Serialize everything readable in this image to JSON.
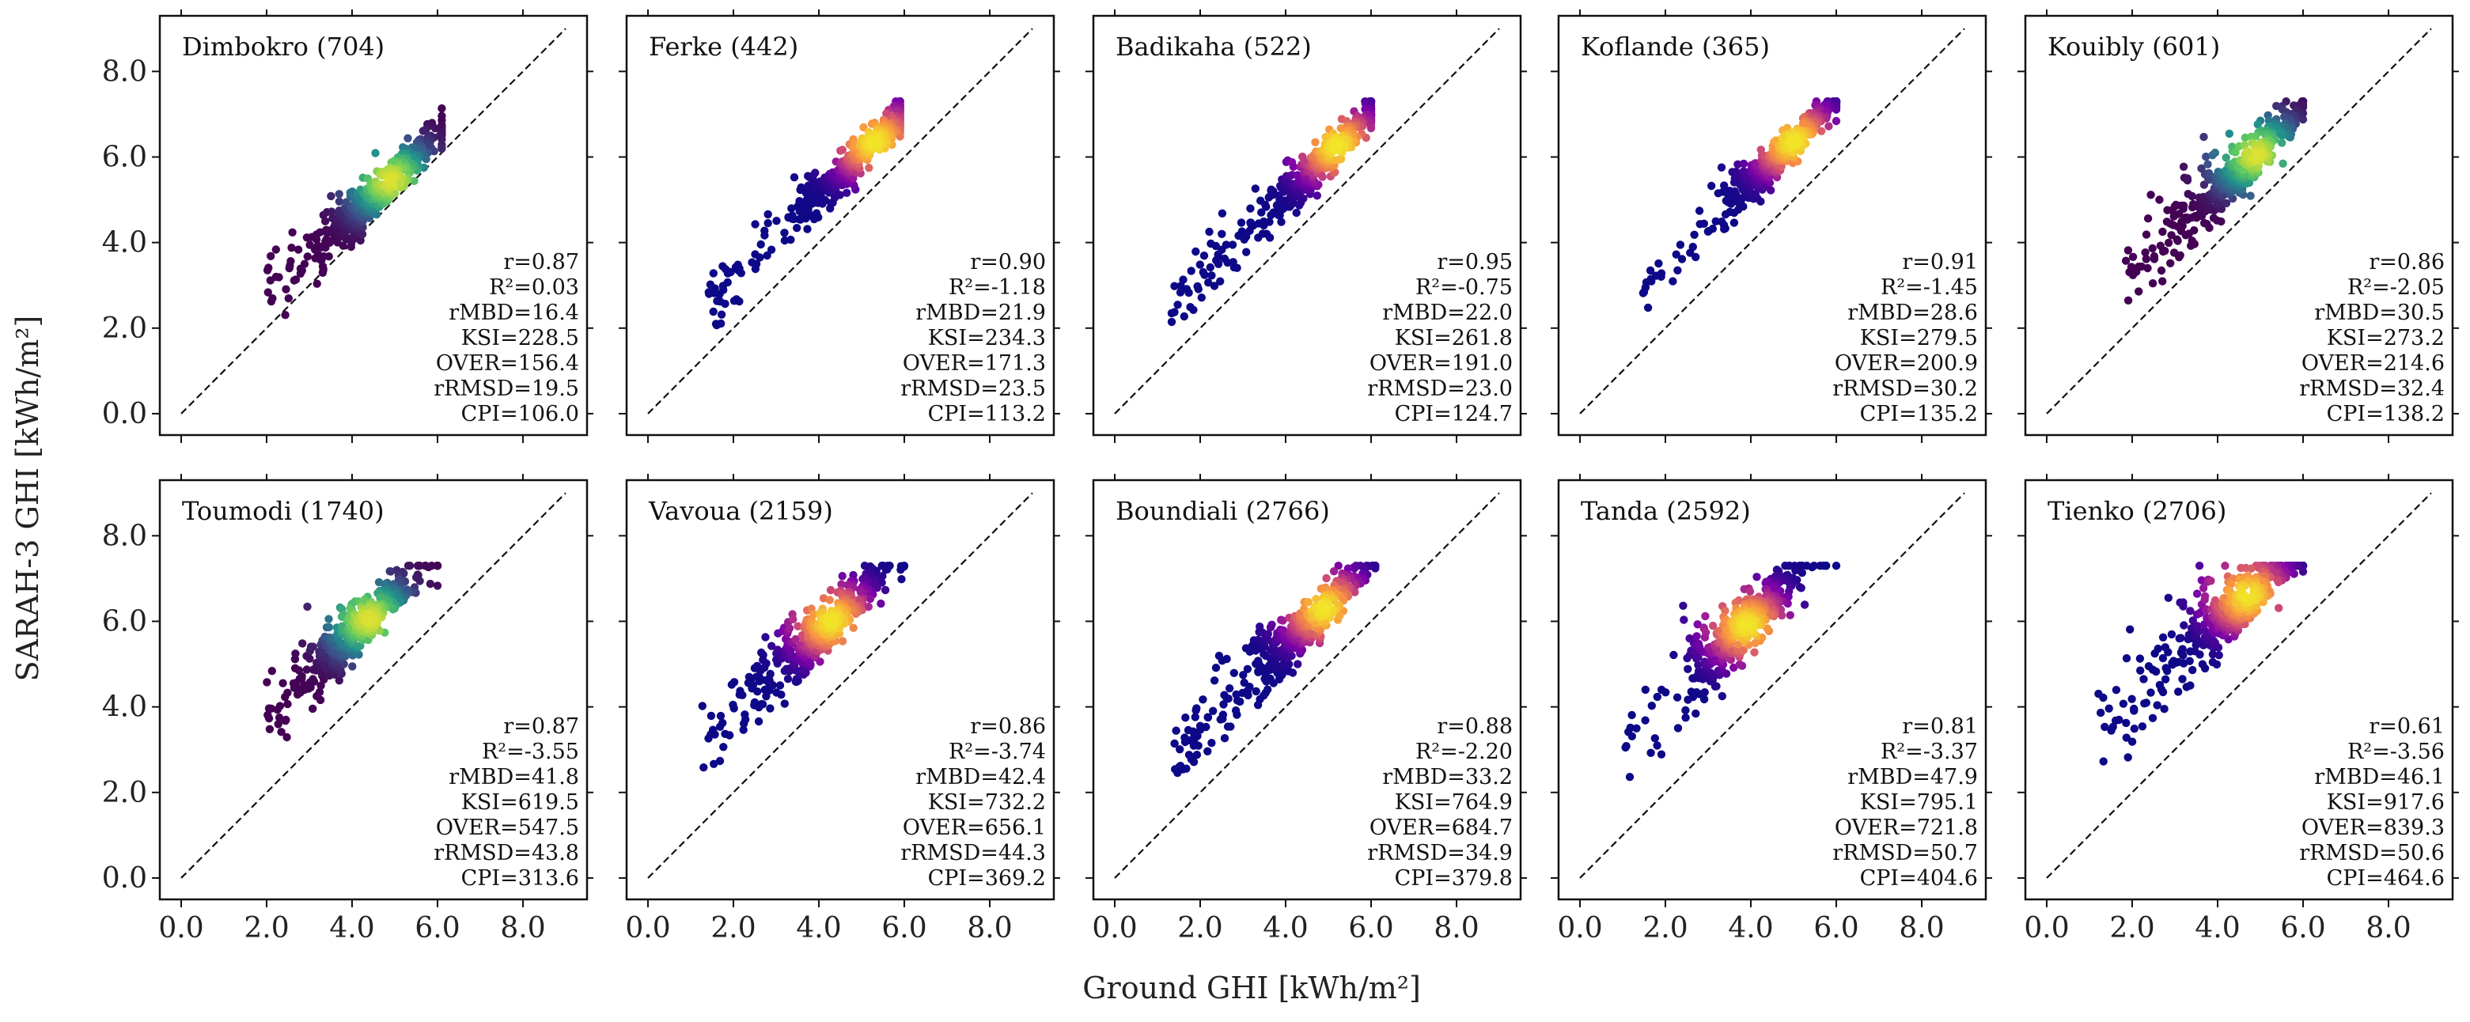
{
  "chart_data": [
    {
      "type": "scatter",
      "title": "Dimbokro (704)",
      "gmin": 2.0,
      "gmax": 6.1,
      "gmean": 4.7,
      "ctr": 4.9,
      "off": 0.55,
      "spread": 0.42,
      "wide": 0.9,
      "cmap": "viridis",
      "stats": [
        "r=0.87",
        "R²=0.03",
        "rMBD=16.4",
        "KSI=228.5",
        "OVER=156.4",
        "rRMSD=19.5",
        "CPI=106.0"
      ]
    },
    {
      "type": "scatter",
      "title": "Ferke (442)",
      "gmin": 1.4,
      "gmax": 5.9,
      "gmean": 5.0,
      "ctr": 5.3,
      "off": 1.05,
      "spread": 0.38,
      "wide": 0.6,
      "cmap": "plasma",
      "stats": [
        "r=0.90",
        "R²=-1.18",
        "rMBD=21.9",
        "KSI=234.3",
        "OVER=171.3",
        "rRMSD=23.5",
        "CPI=113.2"
      ]
    },
    {
      "type": "scatter",
      "title": "Badikaha (522)",
      "gmin": 1.3,
      "gmax": 6.0,
      "gmean": 5.0,
      "ctr": 5.2,
      "off": 1.05,
      "spread": 0.35,
      "wide": 0.6,
      "cmap": "plasma",
      "stats": [
        "r=0.95",
        "R²=-0.75",
        "rMBD=22.0",
        "KSI=261.8",
        "OVER=191.0",
        "rRMSD=23.0",
        "CPI=124.7"
      ]
    },
    {
      "type": "scatter",
      "title": "Koflande (365)",
      "gmin": 1.4,
      "gmax": 6.0,
      "gmean": 4.8,
      "ctr": 5.0,
      "off": 1.35,
      "spread": 0.35,
      "wide": 0.6,
      "cmap": "plasma",
      "stats": [
        "r=0.91",
        "R²=-1.45",
        "rMBD=28.6",
        "KSI=279.5",
        "OVER=200.9",
        "rRMSD=30.2",
        "CPI=135.2"
      ]
    },
    {
      "type": "scatter",
      "title": "Kouibly (601)",
      "gmin": 1.8,
      "gmax": 6.0,
      "gmean": 4.7,
      "ctr": 4.9,
      "off": 1.15,
      "spread": 0.45,
      "wide": 0.9,
      "cmap": "viridis",
      "stats": [
        "r=0.86",
        "R²=-2.05",
        "rMBD=30.5",
        "KSI=273.2",
        "OVER=214.6",
        "rRMSD=32.4",
        "CPI=138.2"
      ]
    },
    {
      "type": "scatter",
      "title": "Toumodi (1740)",
      "gmin": 2.0,
      "gmax": 6.0,
      "gmean": 4.3,
      "ctr": 4.4,
      "off": 1.65,
      "spread": 0.45,
      "wide": 0.9,
      "cmap": "viridis",
      "stats": [
        "r=0.87",
        "R²=-3.55",
        "rMBD=41.8",
        "KSI=619.5",
        "OVER=547.5",
        "rRMSD=43.8",
        "CPI=313.6"
      ]
    },
    {
      "type": "scatter",
      "title": "Vavoua (2159)",
      "gmin": 1.2,
      "gmax": 6.0,
      "gmean": 4.2,
      "ctr": 4.3,
      "off": 1.7,
      "spread": 0.48,
      "wide": 0.9,
      "cmap": "plasma",
      "stats": [
        "r=0.86",
        "R²=-3.74",
        "rMBD=42.4",
        "KSI=732.2",
        "OVER=656.1",
        "rRMSD=44.3",
        "CPI=369.2"
      ]
    },
    {
      "type": "scatter",
      "title": "Boundiali (2766)",
      "gmin": 1.4,
      "gmax": 6.1,
      "gmean": 4.5,
      "ctr": 4.9,
      "off": 1.4,
      "spread": 0.45,
      "wide": 0.9,
      "cmap": "plasma",
      "stats": [
        "r=0.88",
        "R²=-2.20",
        "rMBD=33.2",
        "KSI=764.9",
        "OVER=684.7",
        "rRMSD=34.9",
        "CPI=379.8"
      ]
    },
    {
      "type": "scatter",
      "title": "Tanda (2592)",
      "gmin": 1.0,
      "gmax": 6.0,
      "gmean": 3.9,
      "ctr": 3.9,
      "off": 2.0,
      "spread": 0.6,
      "wide": 1.1,
      "cmap": "plasma",
      "stats": [
        "r=0.81",
        "R²=-3.37",
        "rMBD=47.9",
        "KSI=795.1",
        "OVER=721.8",
        "rRMSD=50.7",
        "CPI=404.6"
      ]
    },
    {
      "type": "scatter",
      "title": "Tienko (2706)",
      "gmin": 1.2,
      "gmax": 6.0,
      "gmean": 4.6,
      "ctr": 4.7,
      "off": 1.9,
      "spread": 0.55,
      "wide": 1.2,
      "cmap": "plasma",
      "stats": [
        "r=0.61",
        "R²=-3.56",
        "rMBD=46.1",
        "KSI=917.6",
        "OVER=839.3",
        "rRMSD=50.6",
        "CPI=464.6"
      ]
    }
  ],
  "xlabel": "Ground GHI [kWh/m²]",
  "ylabel": "SARAH-3 GHI [kWh/m²]",
  "ticks": [
    "0.0",
    "2.0",
    "4.0",
    "6.0",
    "8.0"
  ],
  "tick_values": [
    0,
    2,
    4,
    6,
    8
  ],
  "xlim": [
    -0.5,
    9.5
  ],
  "ylim": [
    -0.5,
    9.3
  ],
  "reference_line": [
    0,
    9
  ],
  "colors": {
    "viridis": [
      "#440154",
      "#3b528b",
      "#21918c",
      "#5ec962",
      "#fde725"
    ],
    "plasma": [
      "#0d0887",
      "#7e03a8",
      "#cc4778",
      "#f89540",
      "#f0f921"
    ]
  }
}
